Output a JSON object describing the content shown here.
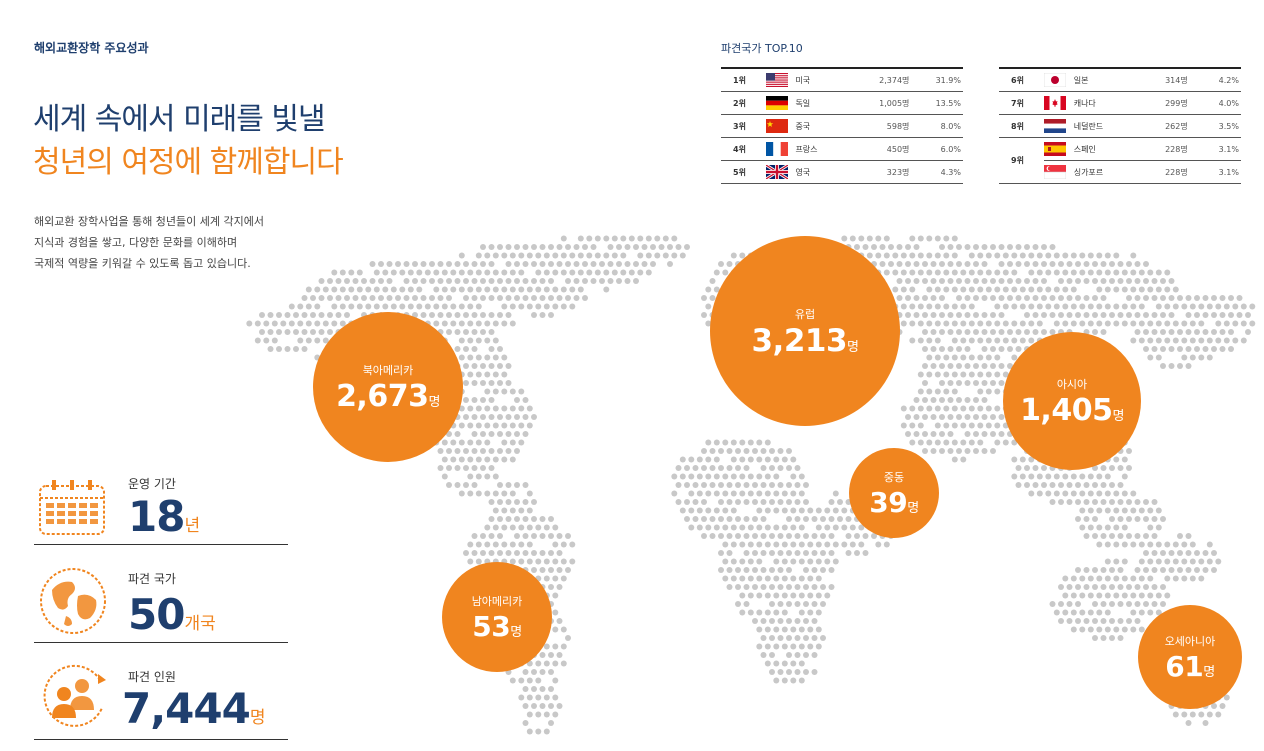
{
  "header": {
    "section_label": "해외교환장학 주요성과",
    "headline_line1": "세계 속에서 미래를 빛낼",
    "headline_line2": "청년의 여정에 함께합니다",
    "description": [
      "해외교환 장학사업을 통해 청년들이 세계 각지에서",
      "지식과 경험을 쌓고, 다양한 문화를 이해하며",
      "국제적 역량을 키워갈 수 있도록 돕고 있습니다."
    ]
  },
  "colors": {
    "accent": "#f0851f",
    "navy": "#1f3f6e",
    "map_dot": "#c8c8c8"
  },
  "top10": {
    "title": "파견국가 TOP.10",
    "left": [
      {
        "rank": "1위",
        "flag": "us-flag-icon",
        "country": "미국",
        "count": "2,374명",
        "pct": "31.9%"
      },
      {
        "rank": "2위",
        "flag": "germany-flag-icon",
        "country": "독일",
        "count": "1,005명",
        "pct": "13.5%"
      },
      {
        "rank": "3위",
        "flag": "china-flag-icon",
        "country": "중국",
        "count": "598명",
        "pct": "8.0%"
      },
      {
        "rank": "4위",
        "flag": "france-flag-icon",
        "country": "프랑스",
        "count": "450명",
        "pct": "6.0%"
      },
      {
        "rank": "5위",
        "flag": "uk-flag-icon",
        "country": "영국",
        "count": "323명",
        "pct": "4.3%"
      }
    ],
    "right": [
      {
        "rank": "6위",
        "flag": "japan-flag-icon",
        "country": "일본",
        "count": "314명",
        "pct": "4.2%"
      },
      {
        "rank": "7위",
        "flag": "canada-flag-icon",
        "country": "캐나다",
        "count": "299명",
        "pct": "4.0%"
      },
      {
        "rank": "8위",
        "flag": "netherlands-flag-icon",
        "country": "네덜란드",
        "count": "262명",
        "pct": "3.5%"
      },
      {
        "rank": "9위",
        "flag": "spain-flag-icon",
        "country": "스페인",
        "count": "228명",
        "pct": "3.1%"
      },
      {
        "rank": "",
        "flag": "singapore-flag-icon",
        "country": "싱가포르",
        "count": "228명",
        "pct": "3.1%"
      }
    ]
  },
  "regions": [
    {
      "name": "북아메리카",
      "value": "2,673",
      "unit": "명"
    },
    {
      "name": "유럽",
      "value": "3,213",
      "unit": "명"
    },
    {
      "name": "아시아",
      "value": "1,405",
      "unit": "명"
    },
    {
      "name": "중동",
      "value": "39",
      "unit": "명"
    },
    {
      "name": "남아메리카",
      "value": "53",
      "unit": "명"
    },
    {
      "name": "오세아니아",
      "value": "61",
      "unit": "명"
    }
  ],
  "stats": [
    {
      "label": "운영 기간",
      "value": "18",
      "unit": "년",
      "icon": "calendar-icon"
    },
    {
      "label": "파견 국가",
      "value": "50",
      "unit": "개국",
      "icon": "globe-icon"
    },
    {
      "label": "파견 인원",
      "value": "7,444",
      "unit": "명",
      "icon": "people-icon"
    }
  ]
}
